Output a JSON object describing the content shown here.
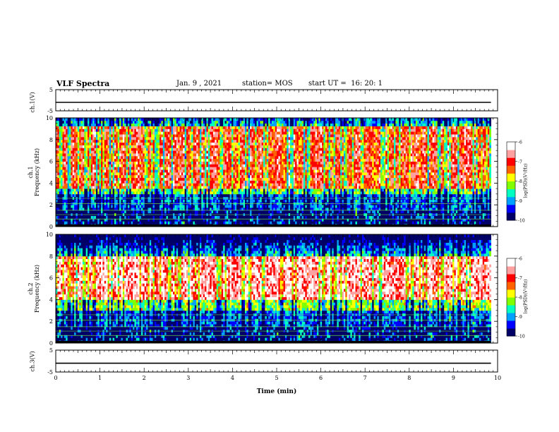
{
  "header": {
    "title": "VLF Spectra",
    "date": "Jan. 9 , 2021",
    "station": "station= MOS",
    "start_time": "start UT =  16: 20: 1"
  },
  "colorbar": {
    "label": "log(PSD)(V²/Hz)",
    "ticks": [
      "-6",
      "-7",
      "-8",
      "-9",
      "-10"
    ]
  },
  "chart_data": [
    {
      "type": "line",
      "panel": "ch.1 waveform",
      "ylabel": "ch.1(V)",
      "ylim": [
        -5,
        5
      ],
      "yticks": [
        -5,
        5
      ],
      "ytick_labels": [
        "-5",
        "5"
      ],
      "xlim": [
        0,
        10
      ],
      "series": [
        {
          "x": [
            0,
            9.85
          ],
          "y": [
            -1,
            -1
          ]
        }
      ]
    },
    {
      "type": "heatmap",
      "panel": "ch.1 spectrogram",
      "ylabel": "ch.1\nFrequency (kHz)",
      "ylim": [
        0,
        10
      ],
      "yticks": [
        0,
        2,
        4,
        6,
        8,
        10
      ],
      "ytick_labels": [
        "0",
        "2",
        "4",
        "6",
        "8",
        "10"
      ],
      "xlim": [
        0,
        10
      ],
      "data_end_min": 9.85,
      "colorscale": [
        "#000066",
        "#0000ff",
        "#00a0ff",
        "#00ffc0",
        "#80ff00",
        "#ffff00",
        "#ff6000",
        "#ff0000",
        "#ffa0a0",
        "#ffffff"
      ],
      "zlim": [
        -10,
        -6
      ],
      "description_bands": [
        {
          "freq_range": [
            3.5,
            9.3
          ],
          "level": -7
        },
        {
          "freq_range": [
            0,
            3
          ],
          "level": -9
        }
      ]
    },
    {
      "type": "heatmap",
      "panel": "ch.2 spectrogram",
      "ylabel": "ch.2\nFrequency (kHz)",
      "ylim": [
        0,
        10
      ],
      "yticks": [
        0,
        2,
        4,
        6,
        8,
        10
      ],
      "ytick_labels": [
        "0",
        "2",
        "4",
        "6",
        "8",
        "10"
      ],
      "xlim": [
        0,
        10
      ],
      "data_end_min": 9.85,
      "colorscale": [
        "#000066",
        "#0000ff",
        "#00a0ff",
        "#00ffc0",
        "#80ff00",
        "#ffff00",
        "#ff6000",
        "#ff0000",
        "#ffa0a0",
        "#ffffff"
      ],
      "zlim": [
        -10,
        -6
      ],
      "description_bands": [
        {
          "freq_range": [
            4,
            8
          ],
          "level": -6.5
        },
        {
          "freq_range": [
            0,
            3
          ],
          "level": -9
        }
      ]
    },
    {
      "type": "line",
      "panel": "ch.3 waveform",
      "ylabel": "ch.3(V)",
      "ylim": [
        -5,
        5
      ],
      "yticks": [
        -5,
        5
      ],
      "ytick_labels": [
        "-5",
        "5"
      ],
      "xlim": [
        0,
        10
      ],
      "xlabel": "Time (min)",
      "xticks": [
        0,
        1,
        2,
        3,
        4,
        5,
        6,
        7,
        8,
        9,
        10
      ],
      "xtick_labels": [
        "0",
        "1",
        "2",
        "3",
        "4",
        "5",
        "6",
        "7",
        "8",
        "9",
        "10"
      ],
      "series": [
        {
          "x": [
            0,
            9.85
          ],
          "y": [
            -1,
            -1
          ]
        }
      ]
    }
  ]
}
